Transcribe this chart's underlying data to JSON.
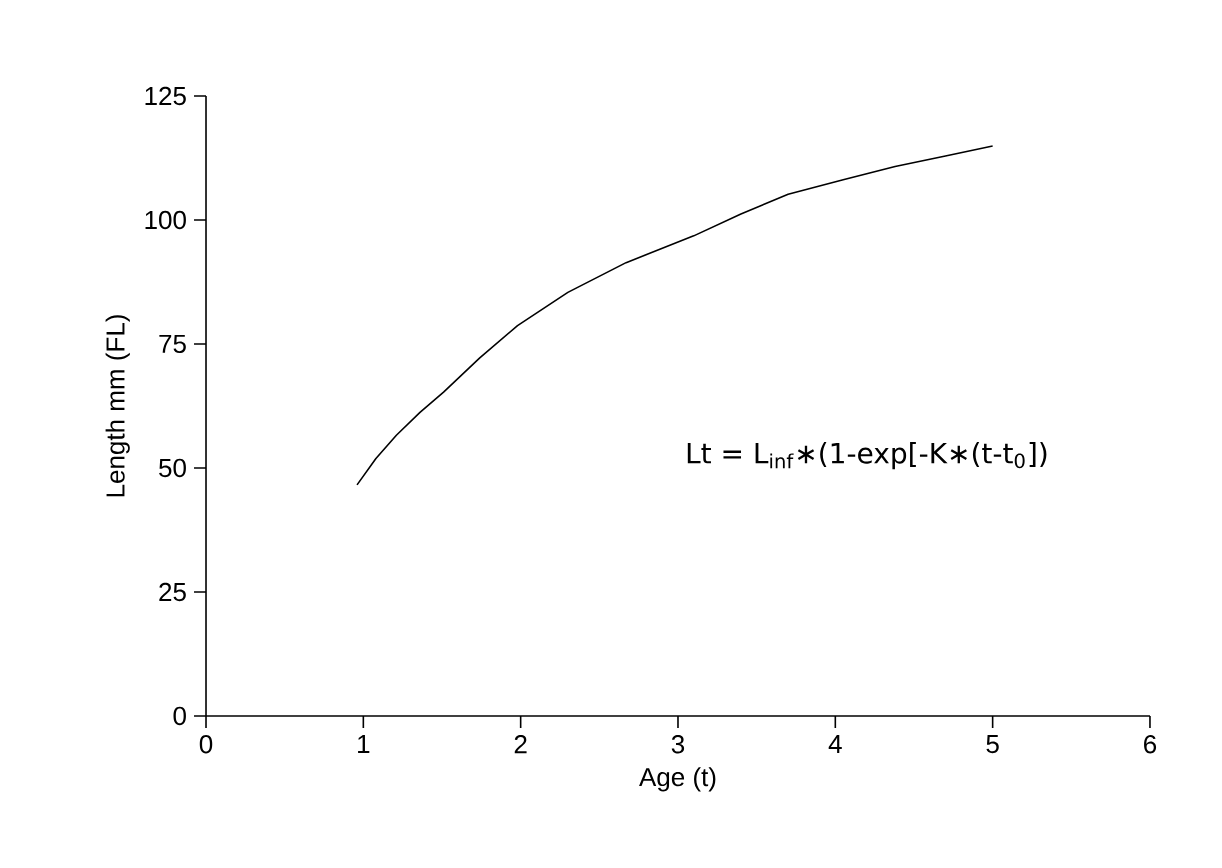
{
  "chart_data": {
    "type": "line",
    "xlabel": "Age (t)",
    "ylabel": "Length mm (FL)",
    "x": [
      0.96,
      1.08,
      1.21,
      1.36,
      1.51,
      1.74,
      1.98,
      2.3,
      2.67,
      3.1,
      3.4,
      3.7,
      4.05,
      4.38,
      4.7,
      5.0
    ],
    "series": [
      {
        "color": "#000000",
        "values": [
          46.6,
          51.9,
          56.6,
          61.2,
          65.3,
          72.2,
          78.7,
          85.4,
          91.4,
          96.8,
          101.2,
          105.2,
          108.1,
          110.8,
          112.9,
          114.9
        ]
      }
    ],
    "xlim": [
      0,
      6
    ],
    "ylim": [
      0,
      125
    ],
    "xticks": [
      0,
      1,
      2,
      3,
      4,
      5,
      6
    ],
    "yticks": [
      0,
      25,
      50,
      75,
      100,
      125
    ],
    "grid": false,
    "marker": "none",
    "line_style": "solid",
    "annotations": [
      "Lt = L$_{inf}$∗(1-exp[-K∗(t-t$_{0}$])"
    ]
  }
}
